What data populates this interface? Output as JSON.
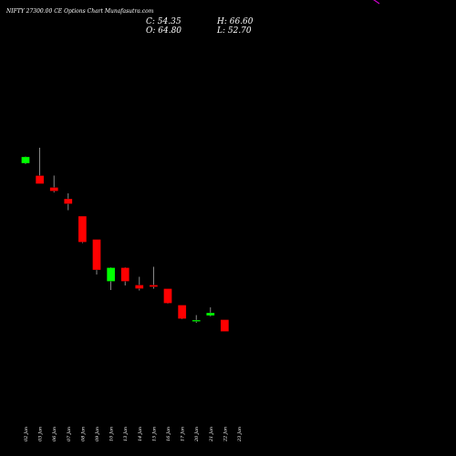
{
  "title": "NIFTY 27300.00 CE Options Chart Munafasutra.com",
  "ohlc": {
    "close_label": "C: 54.35",
    "high_label": "H: 66.60",
    "open_label": "O: 64.80",
    "low_label": "L: 52.70"
  },
  "colors": {
    "background": "#000000",
    "up": "#00ff00",
    "down": "#ff0000",
    "wick": "#aaaaaa",
    "upper_line": "#00ff00",
    "lower_line": "#cc00cc",
    "text": "#ffffff"
  },
  "chart_data": {
    "type": "candlestick",
    "title": "NIFTY 27300.00 CE Options Chart Munafasutra.com",
    "x_tick_labels": [
      "02 Jan",
      "03 Jan",
      "06 Jan",
      "07 Jan",
      "08 Jan",
      "09 Jan",
      "10 Jan",
      "13 Jan",
      "14 Jan",
      "15 Jan",
      "16 Jan",
      "17 Jan",
      "20 Jan",
      "21 Jan",
      "22 Jan",
      "23 Jan"
    ],
    "candles": [
      {
        "date": "02 Jan",
        "open": 60.4,
        "high": 63.4,
        "low": 60.0,
        "close": 63.2,
        "dir": "up"
      },
      {
        "date": "03 Jan",
        "open": 55.0,
        "high": 67.2,
        "low": 51.4,
        "close": 51.4,
        "dir": "down"
      },
      {
        "date": "06 Jan",
        "open": 49.8,
        "high": 55.0,
        "low": 47.6,
        "close": 48.2,
        "dir": "down"
      },
      {
        "date": "07 Jan",
        "open": 44.8,
        "high": 47.2,
        "low": 39.8,
        "close": 42.6,
        "dir": "down"
      },
      {
        "date": "08 Jan",
        "open": 37.2,
        "high": 37.2,
        "low": 25.4,
        "close": 25.8,
        "dir": "down"
      },
      {
        "date": "09 Jan",
        "open": 27.0,
        "high": 27.0,
        "low": 11.6,
        "close": 13.6,
        "dir": "down"
      },
      {
        "date": "10 Jan",
        "open": 8.6,
        "high": 14.8,
        "low": 4.8,
        "close": 14.6,
        "dir": "up"
      },
      {
        "date": "13 Jan",
        "open": 14.6,
        "high": 14.8,
        "low": 6.8,
        "close": 8.6,
        "dir": "down"
      },
      {
        "date": "14 Jan",
        "open": 7.0,
        "high": 10.6,
        "low": 4.6,
        "close": 5.4,
        "dir": "down"
      },
      {
        "date": "15 Jan",
        "open": 7.0,
        "high": 15.0,
        "low": 5.4,
        "close": 6.2,
        "dir": "down"
      },
      {
        "date": "16 Jan",
        "open": 5.4,
        "high": 5.4,
        "low": -1.2,
        "close": -1.0,
        "dir": "down"
      },
      {
        "date": "17 Jan",
        "open": -1.8,
        "high": -1.8,
        "low": -8.0,
        "close": -7.8,
        "dir": "down"
      },
      {
        "date": "20 Jan",
        "open": -8.6,
        "high": -6.2,
        "low": -9.6,
        "close": -8.4,
        "dir": "up"
      },
      {
        "date": "21 Jan",
        "open": -6.4,
        "high": -2.8,
        "low": -6.8,
        "close": -5.2,
        "dir": "up"
      },
      {
        "date": "22 Jan",
        "open": -8.2,
        "high": -8.2,
        "low": -13.4,
        "close": -13.4,
        "dir": "down"
      }
    ],
    "lines": [
      {
        "color": "green",
        "values": [
          200.4,
          200.4,
          195.2,
          194.6,
          193.0,
          181.6,
          174.6,
          175.4,
          172.6,
          171.4,
          171.8,
          168.2,
          165.6,
          165.4,
          166.0,
          164.4
        ]
      },
      {
        "color": "magenta",
        "values": [
          165.8,
          165.8,
          164.2,
          162.8,
          162.2,
          155.0,
          149.6,
          152.2,
          150.8,
          149.8,
          150.4,
          147.0,
          136.4,
          134.0,
          138.0,
          130.4
        ]
      }
    ]
  }
}
